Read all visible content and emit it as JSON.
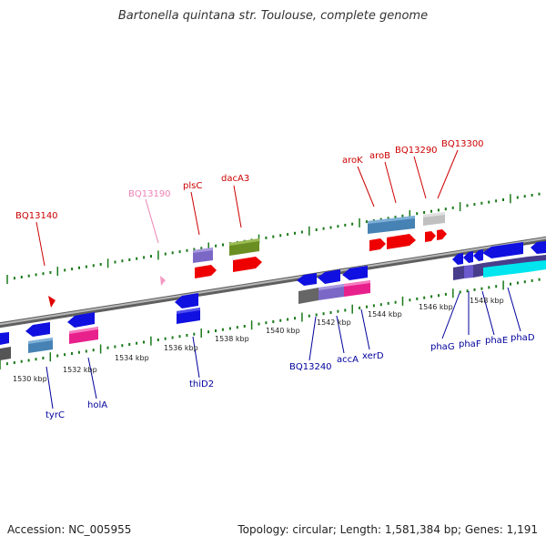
{
  "title": "Bartonella quintana str. Toulouse, complete genome",
  "footer": {
    "accession": "Accession: NC_005955",
    "topology": "Topology: circular; Length: 1,581,384 bp; Genes: 1,191"
  },
  "colors": {
    "forward_label": "#cc0000",
    "pseudo_label": "#ee82b4",
    "reverse_label": "#00009c",
    "tick": "#1a7a1a",
    "backbone": "#8c8c8c"
  },
  "scale_labels": [
    "1530 kbp",
    "1532 kbp",
    "1534 kbp",
    "1536 kbp",
    "1538 kbp",
    "1540 kbp",
    "1542 kbp",
    "1544 kbp",
    "1546 kbp",
    "1548 kbp"
  ],
  "forward_gene_labels": [
    "BQ13140",
    "BQ13190",
    "plsC",
    "dacA3",
    "aroK",
    "aroB",
    "BQ13290",
    "BQ13300"
  ],
  "reverse_gene_labels": [
    "tyrC",
    "holA",
    "thiD2",
    "BQ13240",
    "accA",
    "xerD",
    "phaG",
    "phaF",
    "phaE",
    "phaD"
  ]
}
